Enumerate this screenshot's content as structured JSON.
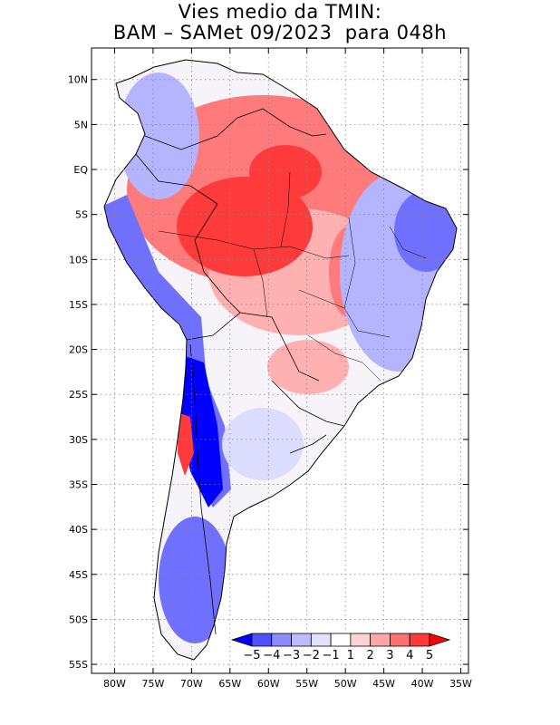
{
  "title": {
    "line1": "Vies medio da TMIN:",
    "line2": "BAM – SAMet 09/2023  para 048h"
  },
  "map": {
    "lon_range": [
      -83,
      -34
    ],
    "lat_range": [
      -56,
      13.5
    ],
    "x_ticks": [
      {
        "value": -80,
        "label": "80W"
      },
      {
        "value": -75,
        "label": "75W"
      },
      {
        "value": -70,
        "label": "70W"
      },
      {
        "value": -65,
        "label": "65W"
      },
      {
        "value": -60,
        "label": "60W"
      },
      {
        "value": -55,
        "label": "55W"
      },
      {
        "value": -50,
        "label": "50W"
      },
      {
        "value": -45,
        "label": "45W"
      },
      {
        "value": -40,
        "label": "40W"
      },
      {
        "value": -35,
        "label": "35W"
      }
    ],
    "y_ticks": [
      {
        "value": 10,
        "label": "10N"
      },
      {
        "value": 5,
        "label": "5N"
      },
      {
        "value": 0,
        "label": "EQ"
      },
      {
        "value": -5,
        "label": "5S"
      },
      {
        "value": -10,
        "label": "10S"
      },
      {
        "value": -15,
        "label": "15S"
      },
      {
        "value": -20,
        "label": "20S"
      },
      {
        "value": -25,
        "label": "25S"
      },
      {
        "value": -30,
        "label": "30S"
      },
      {
        "value": -35,
        "label": "35S"
      },
      {
        "value": -40,
        "label": "40S"
      },
      {
        "value": -45,
        "label": "45S"
      },
      {
        "value": -50,
        "label": "50S"
      },
      {
        "value": -55,
        "label": "55S"
      }
    ],
    "grid": "dotted"
  },
  "colorbar": {
    "labels": [
      "−5",
      "−4",
      "−3",
      "−2",
      "−1",
      "1",
      "2",
      "3",
      "4",
      "5"
    ],
    "colors": [
      "#0000ff",
      "#5050ff",
      "#8c8cff",
      "#bcbcff",
      "#e2e2ff",
      "#ffffff",
      "#ffd2d2",
      "#ffa6a6",
      "#ff7070",
      "#ff3a3a",
      "#ff0000"
    ]
  },
  "colors": {
    "strong_warm": "#ff3a3a",
    "warm": "#ff7a7a",
    "mild_warm": "#ffb0b0",
    "slight_warm": "#ffd8d8",
    "slight_cold": "#dcdcff",
    "mild_cold": "#b4b4ff",
    "cold": "#7070ff",
    "strong_cold": "#0000ff"
  }
}
